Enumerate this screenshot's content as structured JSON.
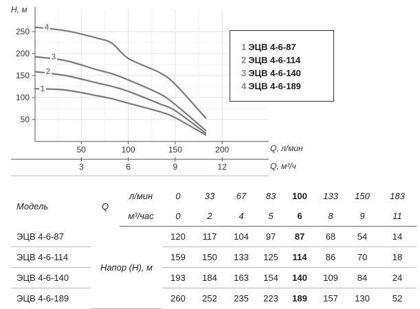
{
  "chart_data": {
    "type": "line",
    "ylabel": "H, м",
    "xlabel": "Q, л/мин",
    "x2label": "Q, м³/ч",
    "xlim": [
      0,
      200
    ],
    "ylim": [
      0,
      275
    ],
    "y_ticks": [
      "50",
      "100",
      "150",
      "200",
      "250"
    ],
    "x_ticks": [
      "50",
      "100",
      "150",
      "200"
    ],
    "x2_ticks": [
      "3",
      "6",
      "9",
      "12"
    ],
    "grid": true,
    "series": [
      {
        "name": "1",
        "x": [
          0,
          33,
          67,
          83,
          100,
          133,
          150,
          183
        ],
        "y": [
          120,
          117,
          104,
          97,
          87,
          68,
          54,
          14
        ]
      },
      {
        "name": "2",
        "x": [
          0,
          33,
          67,
          83,
          100,
          133,
          150,
          183
        ],
        "y": [
          159,
          150,
          133,
          125,
          114,
          86,
          70,
          18
        ]
      },
      {
        "name": "3",
        "x": [
          0,
          33,
          67,
          83,
          100,
          133,
          150,
          183
        ],
        "y": [
          193,
          184,
          163,
          154,
          140,
          109,
          84,
          24
        ]
      },
      {
        "name": "4",
        "x": [
          0,
          33,
          67,
          83,
          100,
          133,
          150,
          183
        ],
        "y": [
          260,
          252,
          235,
          223,
          189,
          157,
          130,
          52
        ]
      }
    ]
  },
  "legend": [
    {
      "num": "1",
      "label": "ЭЦВ 4-6-87"
    },
    {
      "num": "2",
      "label": "ЭЦВ 4-6-114"
    },
    {
      "num": "3",
      "label": "ЭЦВ 4-6-140"
    },
    {
      "num": "4",
      "label": "ЭЦВ 4-6-189"
    }
  ],
  "table": {
    "model_header": "Модель",
    "q_header": "Q",
    "unit_lmin": "л/мин",
    "unit_m3h": "м³/час",
    "napor_label": "Напор (Н), м",
    "q_lmin": [
      "0",
      "33",
      "67",
      "83",
      "100",
      "133",
      "150",
      "183"
    ],
    "q_m3h": [
      "0",
      "2",
      "4",
      "5",
      "6",
      "8",
      "9",
      "11"
    ],
    "rows": [
      {
        "model": "ЭЦВ 4-6-87",
        "values": [
          "120",
          "117",
          "104",
          "97",
          "87",
          "68",
          "54",
          "14"
        ]
      },
      {
        "model": "ЭЦВ 4-6-114",
        "values": [
          "159",
          "150",
          "133",
          "125",
          "114",
          "86",
          "70",
          "18"
        ]
      },
      {
        "model": "ЭЦВ 4-6-140",
        "values": [
          "193",
          "184",
          "163",
          "154",
          "140",
          "109",
          "84",
          "24"
        ]
      },
      {
        "model": "ЭЦВ 4-6-189",
        "values": [
          "260",
          "252",
          "235",
          "223",
          "189",
          "157",
          "130",
          "52"
        ]
      }
    ],
    "highlight_col": 4
  }
}
